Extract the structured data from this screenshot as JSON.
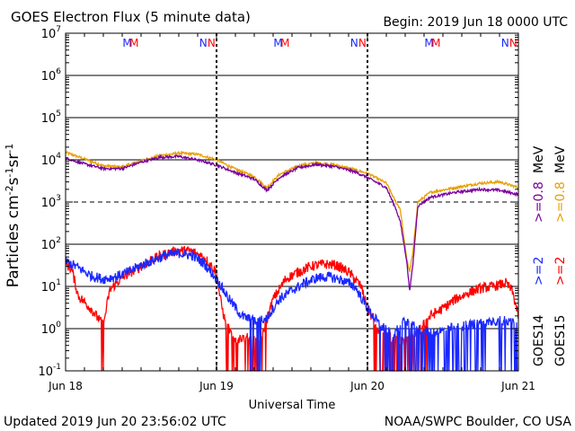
{
  "header": {
    "title": "GOES Electron Flux (5 minute data)",
    "begin": "Begin: 2019 Jun 18 0000 UTC"
  },
  "footer": {
    "updated": "Updated 2019 Jun 20 23:56:02 UTC",
    "source": "NOAA/SWPC Boulder, CO USA"
  },
  "chart_data": {
    "type": "line",
    "title": "GOES Electron Flux (5 minute data)",
    "xlabel": "Universal Time",
    "ylabel": "Particles cm^-2 s^-1 sr^-1",
    "y_scale": "log",
    "ylim": [
      0.1,
      10000000
    ],
    "xlim_hours": [
      0,
      72
    ],
    "x_tick_labels": [
      {
        "hour": 0,
        "label": "Jun 18"
      },
      {
        "hour": 24,
        "label": "Jun 19"
      },
      {
        "hour": 48,
        "label": "Jun 20"
      },
      {
        "hour": 72,
        "label": "Jun 21"
      }
    ],
    "y_ticks": [
      {
        "exp": -1,
        "label": "10",
        "sup": "-1"
      },
      {
        "exp": 0,
        "label": "10",
        "sup": "0"
      },
      {
        "exp": 1,
        "label": "10",
        "sup": "1"
      },
      {
        "exp": 2,
        "label": "10",
        "sup": "2"
      },
      {
        "exp": 3,
        "label": "10",
        "sup": "3"
      },
      {
        "exp": 4,
        "label": "10",
        "sup": "4"
      },
      {
        "exp": 5,
        "label": "10",
        "sup": "5"
      },
      {
        "exp": 6,
        "label": "10",
        "sup": "6"
      },
      {
        "exp": 7,
        "label": "10",
        "sup": "7"
      }
    ],
    "solid_gridlines_exp": [
      0,
      1,
      2,
      4,
      5,
      6
    ],
    "dashed_gridlines_exp": [
      3
    ],
    "day_boundaries_hours": [
      24,
      48
    ],
    "markers": [
      {
        "hour": 9.8,
        "label": "M",
        "color": "#1a28ff"
      },
      {
        "hour": 10.9,
        "label": "M",
        "color": "#ff0000"
      },
      {
        "hour": 21.9,
        "label": "N",
        "color": "#1a28ff"
      },
      {
        "hour": 23.2,
        "label": "N",
        "color": "#ff0000"
      },
      {
        "hour": 33.8,
        "label": "M",
        "color": "#1a28ff"
      },
      {
        "hour": 34.9,
        "label": "M",
        "color": "#ff0000"
      },
      {
        "hour": 45.9,
        "label": "N",
        "color": "#1a28ff"
      },
      {
        "hour": 47.2,
        "label": "N",
        "color": "#ff0000"
      },
      {
        "hour": 57.8,
        "label": "M",
        "color": "#1a28ff"
      },
      {
        "hour": 58.9,
        "label": "M",
        "color": "#ff0000"
      },
      {
        "hour": 69.9,
        "label": "N",
        "color": "#1a28ff"
      },
      {
        "hour": 71.2,
        "label": "N",
        "color": "#ff0000"
      }
    ],
    "legend": {
      "placement": "right, rotated",
      "groups": [
        {
          "sat": "GOES14",
          "entries": [
            {
              "label": ">=2",
              "unit": "MeV",
              "color": "#1a28ff"
            },
            {
              "label": ">=0.8",
              "unit": "MeV",
              "color": "#7a009e"
            }
          ]
        },
        {
          "sat": "GOES15",
          "entries": [
            {
              "label": ">=2",
              "unit": "",
              "color": "#ff0000"
            },
            {
              "label": ">=0.8",
              "unit": "MeV",
              "color": "#e8a000"
            }
          ]
        }
      ]
    },
    "series": [
      {
        "name": "GOES15 >=0.8 MeV",
        "color": "#e8a000",
        "noise": 0.03,
        "dropout_floor": null,
        "points": [
          [
            0,
            15000
          ],
          [
            3,
            10500
          ],
          [
            6,
            7200
          ],
          [
            9,
            6800
          ],
          [
            12,
            9500
          ],
          [
            15,
            12500
          ],
          [
            18,
            14500
          ],
          [
            21,
            13500
          ],
          [
            24,
            10000
          ],
          [
            27,
            6000
          ],
          [
            30,
            4000
          ],
          [
            32,
            2200
          ],
          [
            34,
            4500
          ],
          [
            37,
            7200
          ],
          [
            40,
            8500
          ],
          [
            43,
            7500
          ],
          [
            46,
            5800
          ],
          [
            48,
            4800
          ],
          [
            51,
            2800
          ],
          [
            52.5,
            1000
          ],
          [
            53.2,
            700
          ],
          [
            54.2,
            50
          ],
          [
            54.7,
            22
          ],
          [
            55.2,
            60
          ],
          [
            56,
            1000
          ],
          [
            58,
            1700
          ],
          [
            62,
            2200
          ],
          [
            66,
            2800
          ],
          [
            69,
            3000
          ],
          [
            72,
            2200
          ]
        ]
      },
      {
        "name": "GOES14 >=0.8 MeV",
        "color": "#7a009e",
        "noise": 0.03,
        "dropout_floor": null,
        "points": [
          [
            0,
            11000
          ],
          [
            3,
            8000
          ],
          [
            6,
            6200
          ],
          [
            9,
            6200
          ],
          [
            12,
            8800
          ],
          [
            15,
            11500
          ],
          [
            18,
            12000
          ],
          [
            21,
            10000
          ],
          [
            24,
            7500
          ],
          [
            27,
            5000
          ],
          [
            30,
            3500
          ],
          [
            32,
            1900
          ],
          [
            34,
            3800
          ],
          [
            37,
            6500
          ],
          [
            40,
            7800
          ],
          [
            43,
            6800
          ],
          [
            46,
            5200
          ],
          [
            48,
            3800
          ],
          [
            51,
            2200
          ],
          [
            52.5,
            700
          ],
          [
            53.2,
            350
          ],
          [
            54.2,
            45
          ],
          [
            54.7,
            8
          ],
          [
            55.2,
            30
          ],
          [
            56,
            800
          ],
          [
            58,
            1300
          ],
          [
            62,
            1700
          ],
          [
            66,
            2000
          ],
          [
            69,
            1900
          ],
          [
            72,
            1500
          ]
        ]
      },
      {
        "name": "GOES15 >=2 MeV",
        "color": "#ff0000",
        "noise": 0.12,
        "dropout_floor": 0.1,
        "points": [
          [
            0,
            35
          ],
          [
            1,
            25
          ],
          [
            2,
            6
          ],
          [
            4,
            3
          ],
          [
            6,
            1.2
          ],
          [
            7,
            8
          ],
          [
            8.5,
            14
          ],
          [
            10,
            20
          ],
          [
            12,
            30
          ],
          [
            14,
            45
          ],
          [
            16,
            60
          ],
          [
            18,
            72
          ],
          [
            20,
            68
          ],
          [
            22,
            50
          ],
          [
            24,
            22
          ],
          [
            24.6,
            5
          ],
          [
            25.5,
            1.2
          ],
          [
            27,
            0.6
          ],
          [
            29,
            0.6
          ],
          [
            31,
            0.5
          ],
          [
            33,
            5
          ],
          [
            35,
            15
          ],
          [
            37,
            22
          ],
          [
            39,
            30
          ],
          [
            41,
            34
          ],
          [
            43,
            32
          ],
          [
            45,
            22
          ],
          [
            47,
            10
          ],
          [
            48,
            3
          ],
          [
            50,
            0.8
          ],
          [
            52,
            0.6
          ],
          [
            54,
            0.5
          ],
          [
            56,
            0.8
          ],
          [
            58,
            2
          ],
          [
            60,
            3
          ],
          [
            62,
            5
          ],
          [
            64,
            7
          ],
          [
            66,
            9
          ],
          [
            68,
            10
          ],
          [
            70,
            12
          ],
          [
            71,
            8
          ],
          [
            72,
            2
          ]
        ]
      },
      {
        "name": "GOES14 >=2 MeV",
        "color": "#1a28ff",
        "noise": 0.12,
        "dropout_floor": 0.1,
        "points": [
          [
            0,
            40
          ],
          [
            2,
            28
          ],
          [
            4,
            18
          ],
          [
            6,
            15
          ],
          [
            8,
            17
          ],
          [
            10,
            22
          ],
          [
            12,
            32
          ],
          [
            14,
            42
          ],
          [
            16,
            55
          ],
          [
            18,
            62
          ],
          [
            20,
            55
          ],
          [
            22,
            35
          ],
          [
            24,
            15
          ],
          [
            26,
            5
          ],
          [
            28,
            2
          ],
          [
            30,
            1.5
          ],
          [
            32,
            1.8
          ],
          [
            34,
            5
          ],
          [
            36,
            8
          ],
          [
            38,
            12
          ],
          [
            40,
            16
          ],
          [
            42,
            17
          ],
          [
            44,
            14
          ],
          [
            46,
            10
          ],
          [
            48,
            3
          ],
          [
            50,
            1.2
          ],
          [
            52,
            0.7
          ],
          [
            54,
            1.5
          ],
          [
            56,
            1
          ],
          [
            58,
            0.8
          ],
          [
            60,
            0.9
          ],
          [
            62,
            1.1
          ],
          [
            64,
            1.2
          ],
          [
            66,
            1.4
          ],
          [
            68,
            1.5
          ],
          [
            70,
            1.6
          ],
          [
            72,
            1.2
          ]
        ]
      }
    ]
  }
}
